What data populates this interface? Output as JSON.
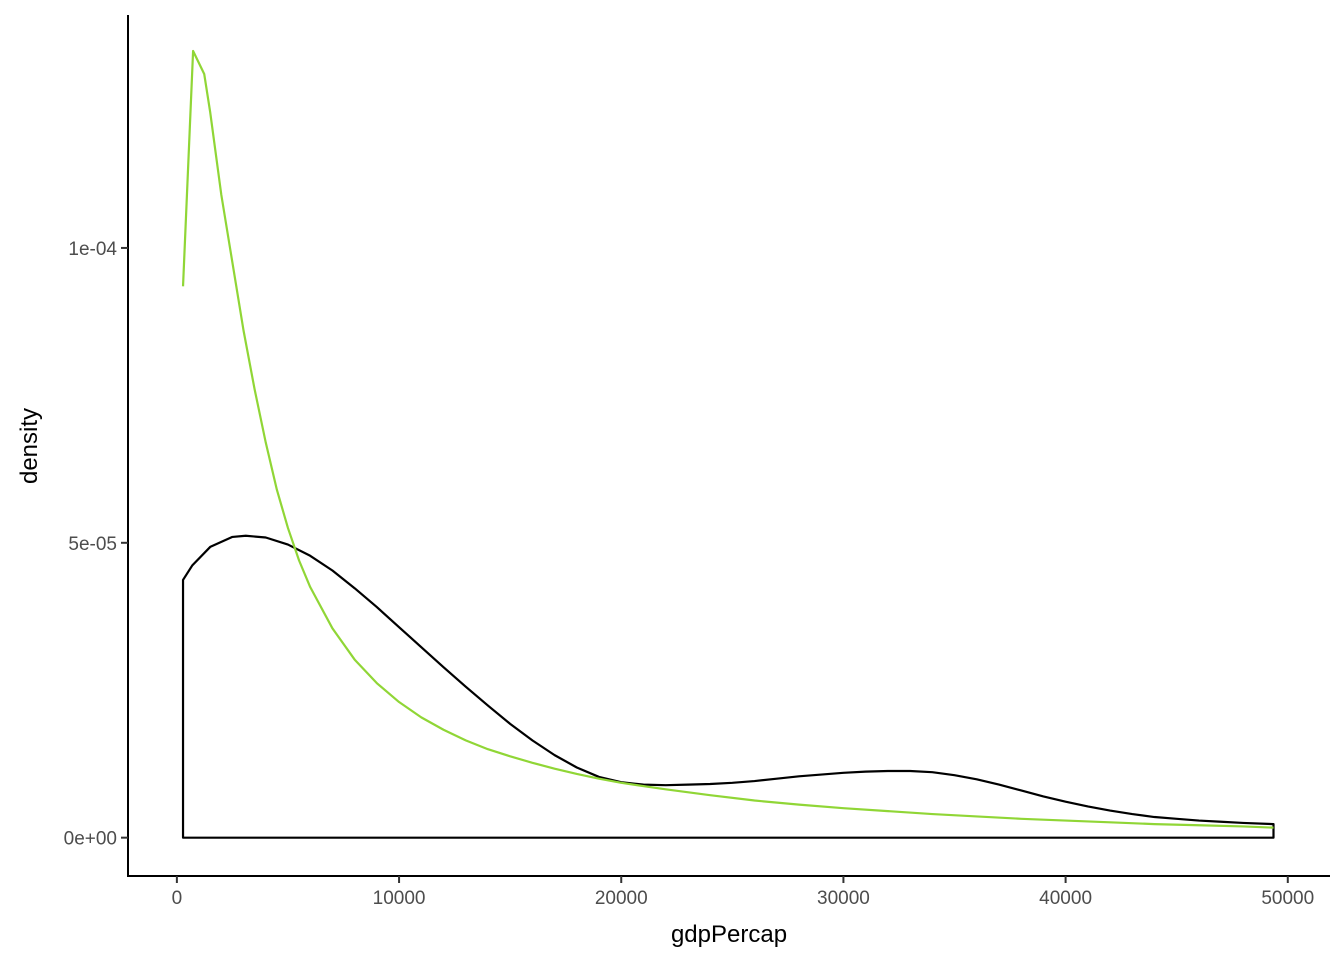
{
  "chart_data": {
    "type": "line",
    "title": "",
    "xlabel": "gdpPercap",
    "ylabel": "density",
    "xlim": [
      -2200,
      51900
    ],
    "ylim": [
      -6.5e-06,
      0.0001395
    ],
    "x_ticks": [
      0,
      10000,
      20000,
      30000,
      40000,
      50000
    ],
    "x_tick_labels": [
      "0",
      "10000",
      "20000",
      "30000",
      "40000",
      "50000"
    ],
    "y_ticks": [
      0,
      5e-05,
      0.0001
    ],
    "y_tick_labels": [
      "0e+00",
      "5e-05",
      "1e-04"
    ],
    "grid": false,
    "legend": "none",
    "series": [
      {
        "style": "density-outline",
        "color": "#000000",
        "x": [
          277,
          700,
          1500,
          2500,
          3100,
          4000,
          5000,
          6000,
          7000,
          8000,
          9000,
          10000,
          11000,
          12000,
          13000,
          14000,
          15000,
          16000,
          17000,
          18000,
          19000,
          20000,
          21000,
          22000,
          23000,
          24000,
          25000,
          26000,
          27000,
          28000,
          29000,
          30000,
          31000,
          32000,
          33000,
          34000,
          35000,
          36000,
          37000,
          38000,
          39000,
          40000,
          41000,
          42000,
          43000,
          44000,
          45000,
          46000,
          47000,
          48000,
          49357
        ],
        "values": [
          4.37e-05,
          4.62e-05,
          4.93e-05,
          5.1e-05,
          5.12e-05,
          5.09e-05,
          4.97e-05,
          4.78e-05,
          4.53e-05,
          4.23e-05,
          3.91e-05,
          3.57e-05,
          3.23e-05,
          2.89e-05,
          2.56e-05,
          2.24e-05,
          1.93e-05,
          1.65e-05,
          1.4e-05,
          1.19e-05,
          1.03e-05,
          9.4e-06,
          9e-06,
          8.9e-06,
          9e-06,
          9.1e-06,
          9.3e-06,
          9.6e-06,
          1e-05,
          1.04e-05,
          1.07e-05,
          1.1e-05,
          1.12e-05,
          1.13e-05,
          1.13e-05,
          1.11e-05,
          1.06e-05,
          9.9e-06,
          9e-06,
          8e-06,
          7e-06,
          6.1e-06,
          5.3e-06,
          4.6e-06,
          4e-06,
          3.5e-06,
          3.2e-06,
          2.9e-06,
          2.7e-06,
          2.5e-06,
          2.3e-06
        ]
      },
      {
        "style": "fitted-curve",
        "color": "#90d636",
        "x": [
          277,
          730,
          1230,
          1500,
          2000,
          2500,
          3000,
          3500,
          4000,
          4500,
          5000,
          5500,
          6000,
          7000,
          8000,
          9000,
          10000,
          11000,
          12000,
          13000,
          14000,
          15000,
          16000,
          17000,
          18000,
          19000,
          20000,
          22000,
          24000,
          26000,
          28000,
          30000,
          32000,
          34000,
          36000,
          38000,
          40000,
          42000,
          44000,
          46000,
          48000,
          49357
        ],
        "values": [
          9.35e-05,
          0.0001334,
          0.0001295,
          0.000123,
          0.000109,
          9.75e-05,
          8.6e-05,
          7.6e-05,
          6.7e-05,
          5.9e-05,
          5.25e-05,
          4.7e-05,
          4.25e-05,
          3.55e-05,
          3.02e-05,
          2.62e-05,
          2.3e-05,
          2.04e-05,
          1.83e-05,
          1.65e-05,
          1.5e-05,
          1.38e-05,
          1.27e-05,
          1.17e-05,
          1.08e-05,
          1e-05,
          9.3e-06,
          8.2e-06,
          7.2e-06,
          6.3e-06,
          5.6e-06,
          5e-06,
          4.5e-06,
          4e-06,
          3.6e-06,
          3.2e-06,
          2.9e-06,
          2.6e-06,
          2.3e-06,
          2.1e-06,
          1.9e-06,
          1.7e-06
        ]
      }
    ]
  }
}
